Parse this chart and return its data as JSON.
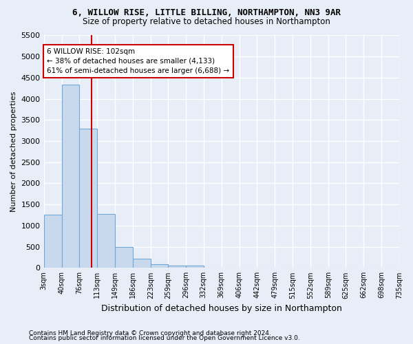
{
  "title1": "6, WILLOW RISE, LITTLE BILLING, NORTHAMPTON, NN3 9AR",
  "title2": "Size of property relative to detached houses in Northampton",
  "xlabel": "Distribution of detached houses by size in Northampton",
  "ylabel": "Number of detached properties",
  "footnote1": "Contains HM Land Registry data © Crown copyright and database right 2024.",
  "footnote2": "Contains public sector information licensed under the Open Government Licence v3.0.",
  "annotation_title": "6 WILLOW RISE: 102sqm",
  "annotation_line1": "← 38% of detached houses are smaller (4,133)",
  "annotation_line2": "61% of semi-detached houses are larger (6,688) →",
  "property_size": 102,
  "bar_color": "#c9d9ed",
  "bar_edge_color": "#6fa8d6",
  "vline_color": "#cc0000",
  "annotation_box_color": "#cc0000",
  "bg_color": "#e8eef7",
  "grid_color": "#ffffff",
  "bin_edges": [
    3,
    40,
    76,
    113,
    149,
    186,
    223,
    259,
    296,
    332,
    369,
    406,
    442,
    479,
    515,
    552,
    589,
    625,
    662,
    698,
    735
  ],
  "bin_labels": [
    "3sqm",
    "40sqm",
    "76sqm",
    "113sqm",
    "149sqm",
    "186sqm",
    "223sqm",
    "259sqm",
    "296sqm",
    "332sqm",
    "369sqm",
    "406sqm",
    "442sqm",
    "479sqm",
    "515sqm",
    "552sqm",
    "589sqm",
    "625sqm",
    "662sqm",
    "698sqm",
    "735sqm"
  ],
  "bar_heights": [
    1265,
    4330,
    3295,
    1270,
    490,
    215,
    90,
    55,
    55,
    0,
    0,
    0,
    0,
    0,
    0,
    0,
    0,
    0,
    0,
    0
  ],
  "ylim": [
    0,
    5500
  ],
  "yticks": [
    0,
    500,
    1000,
    1500,
    2000,
    2500,
    3000,
    3500,
    4000,
    4500,
    5000,
    5500
  ]
}
